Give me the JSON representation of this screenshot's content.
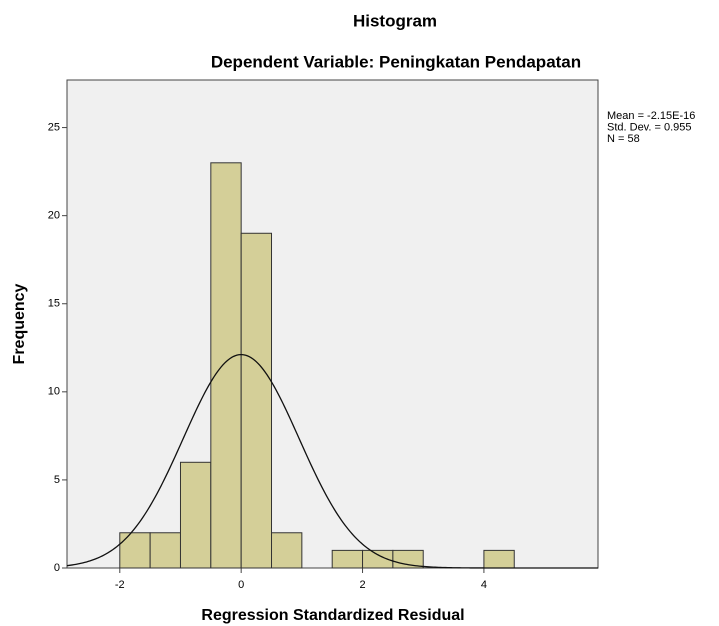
{
  "chart_data": {
    "type": "histogram",
    "title": "Histogram",
    "subtitle": "Dependent Variable: Peningkatan Pendapatan",
    "x_label": "Regression Standardized Residual",
    "y_label": "Frequency",
    "bins": [
      -2,
      -1.5,
      -1,
      -0.5,
      0,
      0.5,
      1,
      1.5,
      2,
      2.5,
      3,
      3.5,
      4,
      4.5
    ],
    "counts": [
      2,
      2,
      6,
      23,
      19,
      2,
      0,
      1,
      1,
      1,
      0,
      0,
      1
    ],
    "color": "#d4cf98",
    "xlim": [
      -2.87,
      5.88
    ],
    "ylim": [
      0,
      27.7
    ],
    "xticks": [
      -2,
      0,
      2,
      4
    ],
    "yticks": [
      0,
      5,
      10,
      15,
      20,
      25
    ],
    "stats": [
      {
        "value": -2.15e-16,
        "label": "Mean = -2.15E-16"
      },
      {
        "value": 0.955,
        "label": "Std. Dev. = 0.955"
      },
      {
        "value": 58,
        "label": "N = 58"
      }
    ],
    "normal_curve": true
  }
}
